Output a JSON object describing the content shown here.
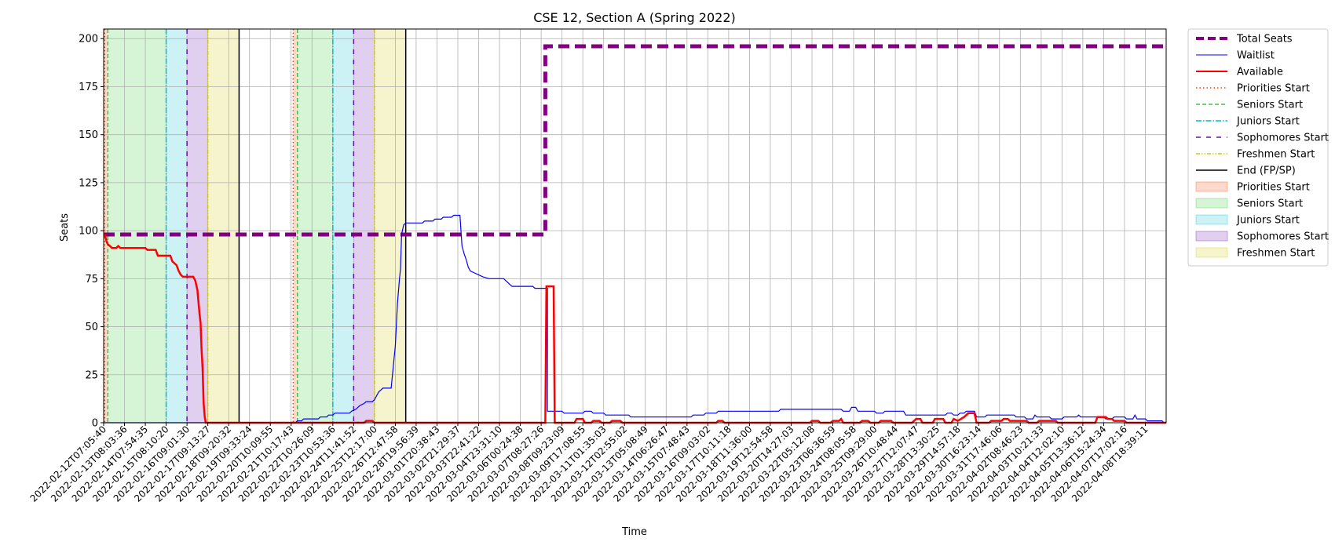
{
  "chart_data": {
    "type": "line",
    "title": "CSE 12, Section A (Spring 2022)",
    "xlabel": "Time",
    "ylabel": "Seats",
    "x_scale": "categorical-time",
    "ylim": [
      0,
      205
    ],
    "yticks": [
      0,
      25,
      50,
      75,
      100,
      125,
      150,
      175,
      200
    ],
    "grid": true,
    "legend_position": "outside-right",
    "colors": {
      "total_seats": "#800080",
      "waitlist": "#0000ff",
      "available": "#ff0000",
      "priorities": "#ff4500",
      "seniors": "#32cd32",
      "juniors": "#00bcd4",
      "sophomores": "#6a0dad",
      "freshmen": "#d4c800",
      "end": "#000000"
    },
    "x_ticks": [
      "2022-02-12T07:05:40",
      "2022-02-13T08:03:36",
      "2022-02-14T07:54:35",
      "2022-02-15T08:10:20",
      "2022-02-16T09:01:30",
      "2022-02-17T09:13:27",
      "2022-02-18T09:20:32",
      "2022-02-19T09:33:24",
      "2022-02-20T10:09:55",
      "2022-02-21T10:17:43",
      "2022-02-22T10:26:09",
      "2022-02-23T10:53:36",
      "2022-02-24T11:41:52",
      "2022-02-25T12:17:00",
      "2022-02-26T12:47:58",
      "2022-02-28T19:56:39",
      "2022-03-01T20:38:43",
      "2022-03-02T21:29:37",
      "2022-03-03T22:41:22",
      "2022-03-04T23:31:10",
      "2022-03-06T00:24:38",
      "2022-03-07T08:27:26",
      "2022-03-08T09:23:09",
      "2022-03-09T17:08:55",
      "2022-03-11T01:35:03",
      "2022-03-12T02:55:02",
      "2022-03-13T05:08:49",
      "2022-03-14T06:26:47",
      "2022-03-15T07:48:43",
      "2022-03-16T09:03:02",
      "2022-03-17T10:11:18",
      "2022-03-18T11:36:00",
      "2022-03-19T12:54:58",
      "2022-03-20T14:27:03",
      "2022-03-22T05:12:08",
      "2022-03-23T06:36:59",
      "2022-03-24T08:05:58",
      "2022-03-25T09:29:00",
      "2022-03-26T10:48:44",
      "2022-03-27T12:07:47",
      "2022-03-28T13:30:25",
      "2022-03-29T14:57:18",
      "2022-03-30T16:23:14",
      "2022-03-31T17:46:06",
      "2022-04-02T08:46:23",
      "2022-04-03T10:21:33",
      "2022-04-04T12:02:10",
      "2022-04-05T13:36:12",
      "2022-04-06T15:24:34",
      "2022-04-07T17:02:16",
      "2022-04-08T18:39:11"
    ],
    "x_end": 51,
    "series": [
      {
        "name": "Total Seats",
        "style": "dashed-thick",
        "points": [
          [
            0,
            98
          ],
          [
            21.2,
            98
          ],
          [
            21.2,
            196
          ],
          [
            51,
            196
          ]
        ]
      },
      {
        "name": "Waitlist",
        "style": "solid-thin",
        "points": [
          [
            0,
            0
          ],
          [
            9.2,
            0
          ],
          [
            9.3,
            1
          ],
          [
            9.5,
            1
          ],
          [
            9.6,
            2
          ],
          [
            10.3,
            2
          ],
          [
            10.4,
            3
          ],
          [
            10.7,
            3
          ],
          [
            10.8,
            4
          ],
          [
            11.0,
            4
          ],
          [
            11.1,
            5
          ],
          [
            11.8,
            5
          ],
          [
            11.9,
            6
          ],
          [
            12.1,
            7
          ],
          [
            12.3,
            9
          ],
          [
            12.5,
            10
          ],
          [
            12.6,
            11
          ],
          [
            12.9,
            11
          ],
          [
            13.0,
            12
          ],
          [
            13.1,
            14
          ],
          [
            13.2,
            16
          ],
          [
            13.3,
            17
          ],
          [
            13.4,
            18
          ],
          [
            13.8,
            18
          ],
          [
            14.0,
            40
          ],
          [
            14.1,
            62
          ],
          [
            14.2,
            75
          ],
          [
            14.25,
            80
          ],
          [
            14.3,
            98
          ],
          [
            14.4,
            103
          ],
          [
            14.5,
            104
          ],
          [
            15.3,
            104
          ],
          [
            15.4,
            105
          ],
          [
            15.8,
            105
          ],
          [
            15.9,
            106
          ],
          [
            16.2,
            106
          ],
          [
            16.3,
            107
          ],
          [
            16.7,
            107
          ],
          [
            16.8,
            108
          ],
          [
            17.1,
            108
          ],
          [
            17.15,
            100
          ],
          [
            17.2,
            92
          ],
          [
            17.3,
            88
          ],
          [
            17.4,
            85
          ],
          [
            17.5,
            81
          ],
          [
            17.6,
            79
          ],
          [
            17.8,
            78
          ],
          [
            18.0,
            77
          ],
          [
            18.2,
            76
          ],
          [
            18.5,
            75
          ],
          [
            19.2,
            75
          ],
          [
            19.3,
            74
          ],
          [
            19.4,
            73
          ],
          [
            19.5,
            72
          ],
          [
            19.6,
            71
          ],
          [
            20.6,
            71
          ],
          [
            20.7,
            70
          ],
          [
            21.3,
            70
          ],
          [
            21.3,
            6
          ],
          [
            22.0,
            6
          ],
          [
            22.1,
            5
          ],
          [
            23.0,
            5
          ],
          [
            23.1,
            6
          ],
          [
            23.4,
            6
          ],
          [
            23.5,
            5
          ],
          [
            24.0,
            5
          ],
          [
            24.1,
            4
          ],
          [
            25.2,
            4
          ],
          [
            25.3,
            3
          ],
          [
            28.2,
            3
          ],
          [
            28.3,
            4
          ],
          [
            28.8,
            4
          ],
          [
            28.9,
            5
          ],
          [
            29.4,
            5
          ],
          [
            29.5,
            6
          ],
          [
            32.4,
            6
          ],
          [
            32.5,
            7
          ],
          [
            35.4,
            7
          ],
          [
            35.5,
            6
          ],
          [
            35.8,
            6
          ],
          [
            35.9,
            8
          ],
          [
            36.1,
            8
          ],
          [
            36.2,
            6
          ],
          [
            37.0,
            6
          ],
          [
            37.1,
            5
          ],
          [
            37.4,
            5
          ],
          [
            37.5,
            6
          ],
          [
            38.4,
            6
          ],
          [
            38.5,
            4
          ],
          [
            40.4,
            4
          ],
          [
            40.5,
            5
          ],
          [
            40.7,
            5
          ],
          [
            40.8,
            4
          ],
          [
            41.0,
            4
          ],
          [
            41.1,
            5
          ],
          [
            41.3,
            5
          ],
          [
            41.4,
            6
          ],
          [
            41.8,
            6
          ],
          [
            41.9,
            3
          ],
          [
            42.3,
            3
          ],
          [
            42.4,
            4
          ],
          [
            43.7,
            4
          ],
          [
            43.8,
            3
          ],
          [
            44.2,
            3
          ],
          [
            44.3,
            2
          ],
          [
            44.6,
            2
          ],
          [
            44.7,
            4
          ],
          [
            44.8,
            3
          ],
          [
            45.4,
            3
          ],
          [
            45.5,
            2
          ],
          [
            46.0,
            2
          ],
          [
            46.1,
            3
          ],
          [
            46.7,
            3
          ],
          [
            46.8,
            4
          ],
          [
            46.9,
            3
          ],
          [
            48.0,
            3
          ],
          [
            48.1,
            2
          ],
          [
            48.4,
            2
          ],
          [
            48.5,
            3
          ],
          [
            49.0,
            3
          ],
          [
            49.1,
            2
          ],
          [
            49.4,
            2
          ],
          [
            49.5,
            4
          ],
          [
            49.6,
            2
          ],
          [
            50.0,
            2
          ],
          [
            50.1,
            1
          ],
          [
            50.8,
            1
          ],
          [
            50.9,
            0
          ],
          [
            51,
            0
          ]
        ]
      },
      {
        "name": "Available",
        "style": "solid-thick",
        "points": [
          [
            0,
            98
          ],
          [
            0.05,
            98
          ],
          [
            0.1,
            96
          ],
          [
            0.15,
            94
          ],
          [
            0.2,
            93
          ],
          [
            0.3,
            92
          ],
          [
            0.4,
            91
          ],
          [
            0.6,
            91
          ],
          [
            0.7,
            92
          ],
          [
            0.8,
            91
          ],
          [
            2.0,
            91
          ],
          [
            2.1,
            90
          ],
          [
            2.5,
            90
          ],
          [
            2.6,
            87
          ],
          [
            3.2,
            87
          ],
          [
            3.3,
            84
          ],
          [
            3.5,
            82
          ],
          [
            3.6,
            79
          ],
          [
            3.7,
            77
          ],
          [
            3.8,
            76
          ],
          [
            4.3,
            76
          ],
          [
            4.4,
            74
          ],
          [
            4.5,
            69
          ],
          [
            4.55,
            63
          ],
          [
            4.6,
            57
          ],
          [
            4.65,
            52
          ],
          [
            4.7,
            38
          ],
          [
            4.75,
            28
          ],
          [
            4.8,
            10
          ],
          [
            4.85,
            3
          ],
          [
            4.9,
            0
          ],
          [
            12.5,
            0
          ],
          [
            12.6,
            1
          ],
          [
            12.9,
            1
          ],
          [
            13.0,
            0
          ],
          [
            21.2,
            0
          ],
          [
            21.25,
            71
          ],
          [
            21.6,
            71
          ],
          [
            21.65,
            0
          ],
          [
            22.6,
            0
          ],
          [
            22.7,
            2
          ],
          [
            23.0,
            2
          ],
          [
            23.1,
            0
          ],
          [
            23.4,
            0
          ],
          [
            23.5,
            1
          ],
          [
            23.8,
            1
          ],
          [
            23.9,
            0
          ],
          [
            24.3,
            0
          ],
          [
            24.4,
            1
          ],
          [
            24.8,
            1
          ],
          [
            24.9,
            0
          ],
          [
            29.4,
            0
          ],
          [
            29.5,
            1
          ],
          [
            29.7,
            1
          ],
          [
            29.8,
            0
          ],
          [
            33.9,
            0
          ],
          [
            34.0,
            1
          ],
          [
            34.3,
            1
          ],
          [
            34.4,
            0
          ],
          [
            34.9,
            0
          ],
          [
            35.0,
            1
          ],
          [
            35.3,
            1
          ],
          [
            35.4,
            2
          ],
          [
            35.5,
            0
          ],
          [
            36.3,
            0
          ],
          [
            36.4,
            1
          ],
          [
            36.7,
            1
          ],
          [
            36.8,
            0
          ],
          [
            37.2,
            0
          ],
          [
            37.3,
            1
          ],
          [
            37.8,
            1
          ],
          [
            37.9,
            0
          ],
          [
            38.8,
            0
          ],
          [
            38.9,
            1
          ],
          [
            39.0,
            2
          ],
          [
            39.2,
            2
          ],
          [
            39.3,
            0
          ],
          [
            39.8,
            0
          ],
          [
            39.9,
            2
          ],
          [
            40.3,
            2
          ],
          [
            40.4,
            0
          ],
          [
            40.7,
            0
          ],
          [
            40.8,
            2
          ],
          [
            41.0,
            1
          ],
          [
            41.3,
            3
          ],
          [
            41.5,
            5
          ],
          [
            41.8,
            5
          ],
          [
            41.9,
            0
          ],
          [
            42.5,
            0
          ],
          [
            42.6,
            1
          ],
          [
            43.1,
            1
          ],
          [
            43.2,
            2
          ],
          [
            43.4,
            2
          ],
          [
            43.5,
            1
          ],
          [
            44.3,
            1
          ],
          [
            44.4,
            0
          ],
          [
            44.8,
            0
          ],
          [
            44.9,
            1
          ],
          [
            45.7,
            1
          ],
          [
            45.8,
            0
          ],
          [
            47.6,
            0
          ],
          [
            47.7,
            3
          ],
          [
            48.1,
            3
          ],
          [
            48.2,
            2
          ],
          [
            48.4,
            2
          ],
          [
            48.5,
            1
          ],
          [
            49.0,
            1
          ],
          [
            49.1,
            0
          ],
          [
            51,
            0
          ]
        ]
      }
    ],
    "period_lines": [
      {
        "name": "Priorities Start",
        "x": [
          0.05,
          9.1
        ]
      },
      {
        "name": "Seniors Start",
        "x": [
          0.2,
          9.3
        ]
      },
      {
        "name": "Juniors Start",
        "x": [
          3.0,
          11.0
        ]
      },
      {
        "name": "Sophomores Start",
        "x": [
          4.0,
          12.0
        ]
      },
      {
        "name": "Freshmen Start",
        "x": [
          5.0,
          13.0
        ]
      },
      {
        "name": "End (FP/SP)",
        "x": [
          6.5,
          14.5
        ]
      }
    ],
    "shaded_spans": [
      {
        "name": "Priorities Start",
        "ranges": [
          [
            0.0,
            0.2
          ],
          [
            9.1,
            9.3
          ]
        ]
      },
      {
        "name": "Seniors Start",
        "ranges": [
          [
            0.2,
            3.0
          ],
          [
            9.3,
            11.0
          ]
        ]
      },
      {
        "name": "Juniors Start",
        "ranges": [
          [
            3.0,
            4.0
          ],
          [
            11.0,
            12.0
          ]
        ]
      },
      {
        "name": "Sophomores Start",
        "ranges": [
          [
            4.0,
            5.0
          ],
          [
            12.0,
            13.0
          ]
        ]
      },
      {
        "name": "Freshmen Start",
        "ranges": [
          [
            5.0,
            6.5
          ],
          [
            13.0,
            14.5
          ]
        ]
      }
    ],
    "legend": [
      {
        "label": "Total Seats",
        "kind": "line",
        "key": "total_seats",
        "dash": "10,5",
        "width": 4
      },
      {
        "label": "Waitlist",
        "kind": "line",
        "key": "waitlist",
        "dash": "",
        "width": 1
      },
      {
        "label": "Available",
        "kind": "line",
        "key": "available",
        "dash": "",
        "width": 2
      },
      {
        "label": "Priorities Start",
        "kind": "line",
        "key": "priorities",
        "dash": "1.5,3",
        "width": 1.5
      },
      {
        "label": "Seniors Start",
        "kind": "line",
        "key": "seniors",
        "dash": "5,3",
        "width": 1.5
      },
      {
        "label": "Juniors Start",
        "kind": "line",
        "key": "juniors",
        "dash": "7,2,1.5,2",
        "width": 1.5
      },
      {
        "label": "Sophomores Start",
        "kind": "line",
        "key": "sophomores",
        "dash": "6,7",
        "width": 1.5
      },
      {
        "label": "Freshmen Start",
        "kind": "line",
        "key": "freshmen",
        "dash": "5,2,1.5,2,1.5,2",
        "width": 1.5
      },
      {
        "label": "End (FP/SP)",
        "kind": "line",
        "key": "end",
        "dash": "",
        "width": 1.5
      },
      {
        "label": "Priorities Start",
        "kind": "patch",
        "key": "priorities"
      },
      {
        "label": "Seniors Start",
        "kind": "patch",
        "key": "seniors"
      },
      {
        "label": "Juniors Start",
        "kind": "patch",
        "key": "juniors"
      },
      {
        "label": "Sophomores Start",
        "kind": "patch",
        "key": "sophomores"
      },
      {
        "label": "Freshmen Start",
        "kind": "patch",
        "key": "freshmen"
      }
    ]
  }
}
